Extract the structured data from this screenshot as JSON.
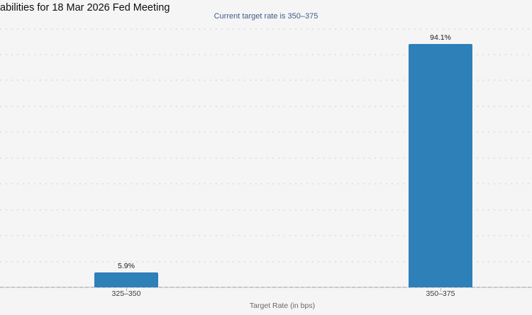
{
  "chart_data": {
    "type": "bar",
    "title": "abilities for 18 Mar 2026 Fed Meeting",
    "subtitle": "Current target rate is 350–375",
    "categories": [
      "325–350",
      "350–375"
    ],
    "values": [
      5.9,
      94.1
    ],
    "value_labels": [
      "5.9%",
      "94.1%"
    ],
    "xlabel": "Target Rate (in bps)",
    "ylabel": "",
    "ylim": [
      0,
      100
    ],
    "grid_step": 10,
    "grid": "horizontal-dotted",
    "legend_position": "none",
    "bar_color": "#2e80b9",
    "subtitle_color": "#3f5c85",
    "background_color": "#f5f5f6"
  }
}
